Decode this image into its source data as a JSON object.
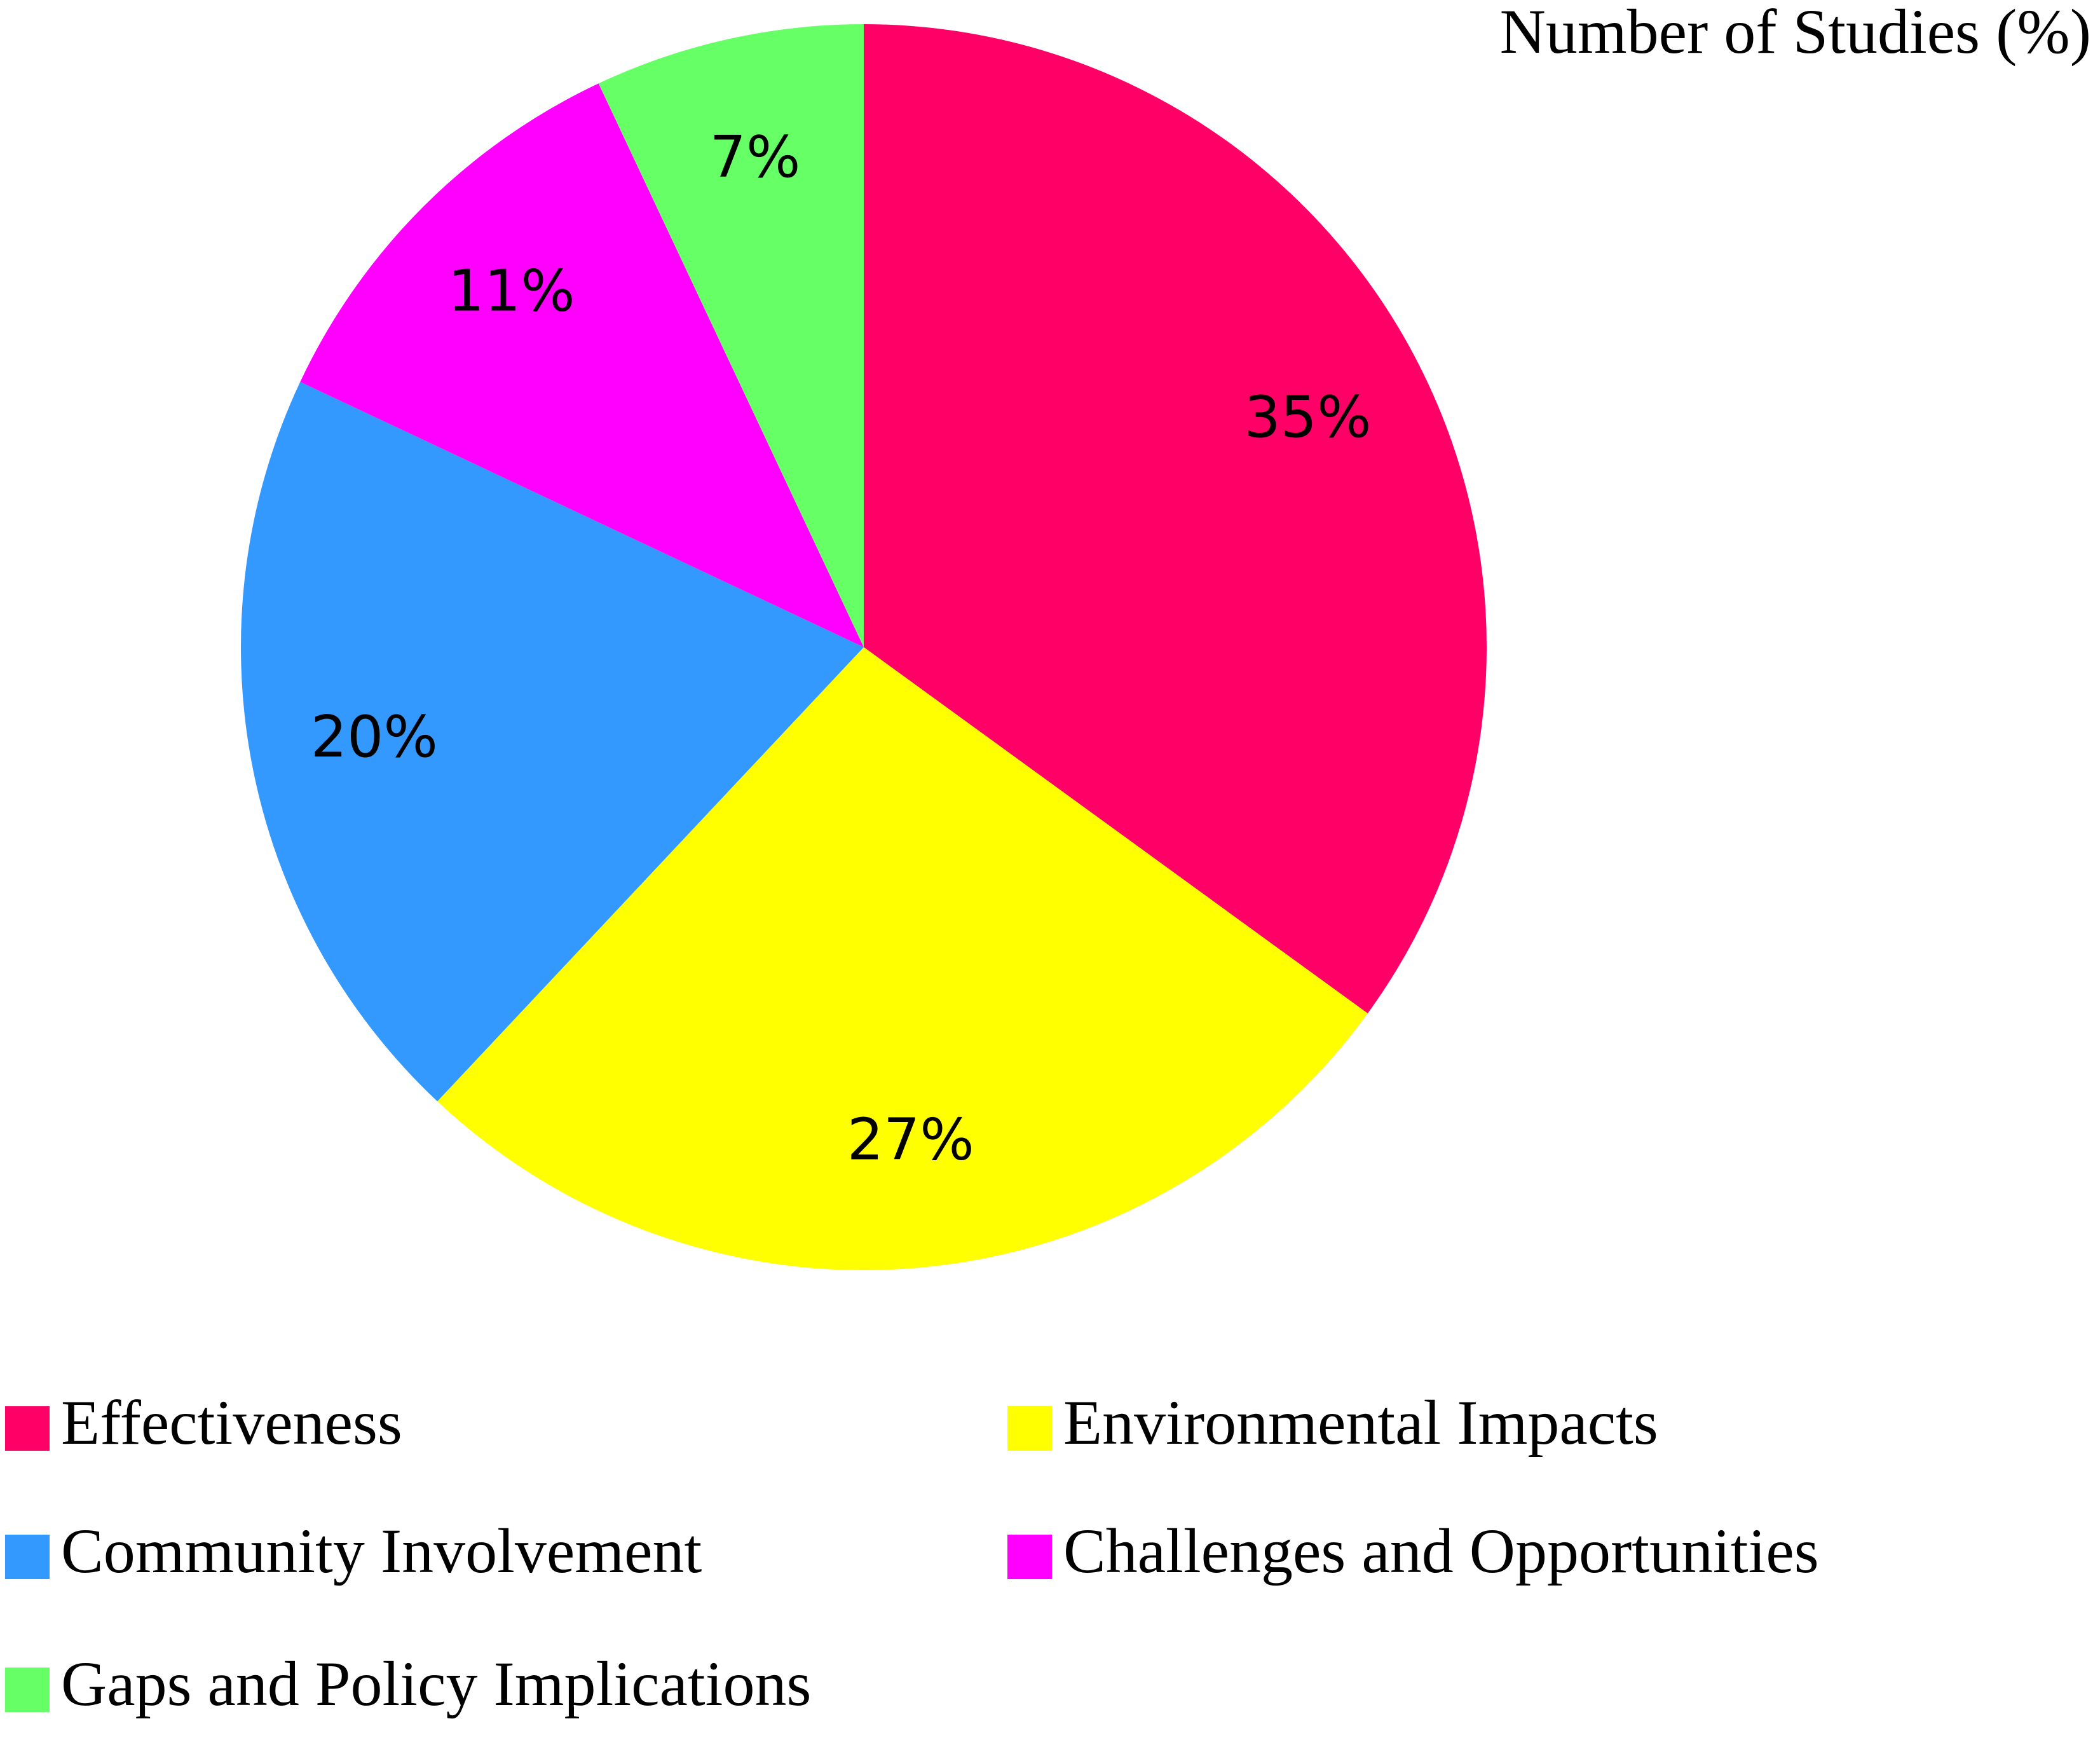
{
  "chart_data": {
    "type": "pie",
    "title": "Number of Studies (%)",
    "categories": [
      "Effectiveness",
      "Environmental Impacts",
      "Community Involvement",
      "Challenges and Opportunities",
      "Gaps and Policy Implications"
    ],
    "values": [
      35,
      27,
      20,
      11,
      7
    ],
    "value_labels": [
      "35%",
      "27%",
      "20%",
      "11%",
      "7%"
    ],
    "colors": [
      "#ff0066",
      "#ffff00",
      "#3399ff",
      "#ff00ff",
      "#66ff66"
    ],
    "legend": "bottom"
  }
}
